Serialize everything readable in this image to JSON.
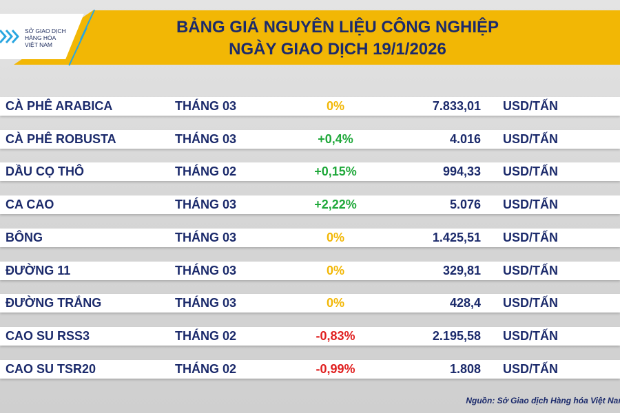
{
  "header": {
    "logo_lines": [
      "SỞ GIAO DỊCH",
      "HÀNG HÓA",
      "VIỆT NAM"
    ],
    "title_line1": "BẢNG GIÁ NGUYÊN LIỆU CÔNG NGHIỆP",
    "title_line2": "NGÀY GIAO DỊCH 19/1/2026"
  },
  "colors": {
    "up": "#1fa83a",
    "down": "#e02020",
    "flat": "#f2b705",
    "text": "#1b2a6b",
    "banner": "#f2b705"
  },
  "rows": [
    {
      "name": "CÀ PHÊ ARABICA",
      "month": "THÁNG 03",
      "change": "0%",
      "trend": "flat",
      "price": "7.833,01",
      "unit": "USD/TẤN"
    },
    {
      "name": "CÀ PHÊ ROBUSTA",
      "month": "THÁNG 03",
      "change": "+0,4%",
      "trend": "up",
      "price": "4.016",
      "unit": "USD/TẤN"
    },
    {
      "name": "DẦU CỌ THÔ",
      "month": "THÁNG 02",
      "change": "+0,15%",
      "trend": "up",
      "price": "994,33",
      "unit": "USD/TẤN"
    },
    {
      "name": "CA CAO",
      "month": "THÁNG 03",
      "change": "+2,22%",
      "trend": "up",
      "price": "5.076",
      "unit": "USD/TẤN"
    },
    {
      "name": "BÔNG",
      "month": "THÁNG 03",
      "change": "0%",
      "trend": "flat",
      "price": "1.425,51",
      "unit": "USD/TẤN"
    },
    {
      "name": "ĐƯỜNG 11",
      "month": "THÁNG 03",
      "change": "0%",
      "trend": "flat",
      "price": "329,81",
      "unit": "USD/TẤN"
    },
    {
      "name": "ĐƯỜNG TRẮNG",
      "month": "THÁNG 03",
      "change": "0%",
      "trend": "flat",
      "price": "428,4",
      "unit": "USD/TẤN"
    },
    {
      "name": "CAO SU RSS3",
      "month": "THÁNG 02",
      "change": "-0,83%",
      "trend": "down",
      "price": "2.195,58",
      "unit": "USD/TẤN"
    },
    {
      "name": "CAO SU TSR20",
      "month": "THÁNG 02",
      "change": "-0,99%",
      "trend": "down",
      "price": "1.808",
      "unit": "USD/TẤN"
    }
  ],
  "source": "Nguồn: Sở Giao dịch Hàng hóa Việt Nam"
}
